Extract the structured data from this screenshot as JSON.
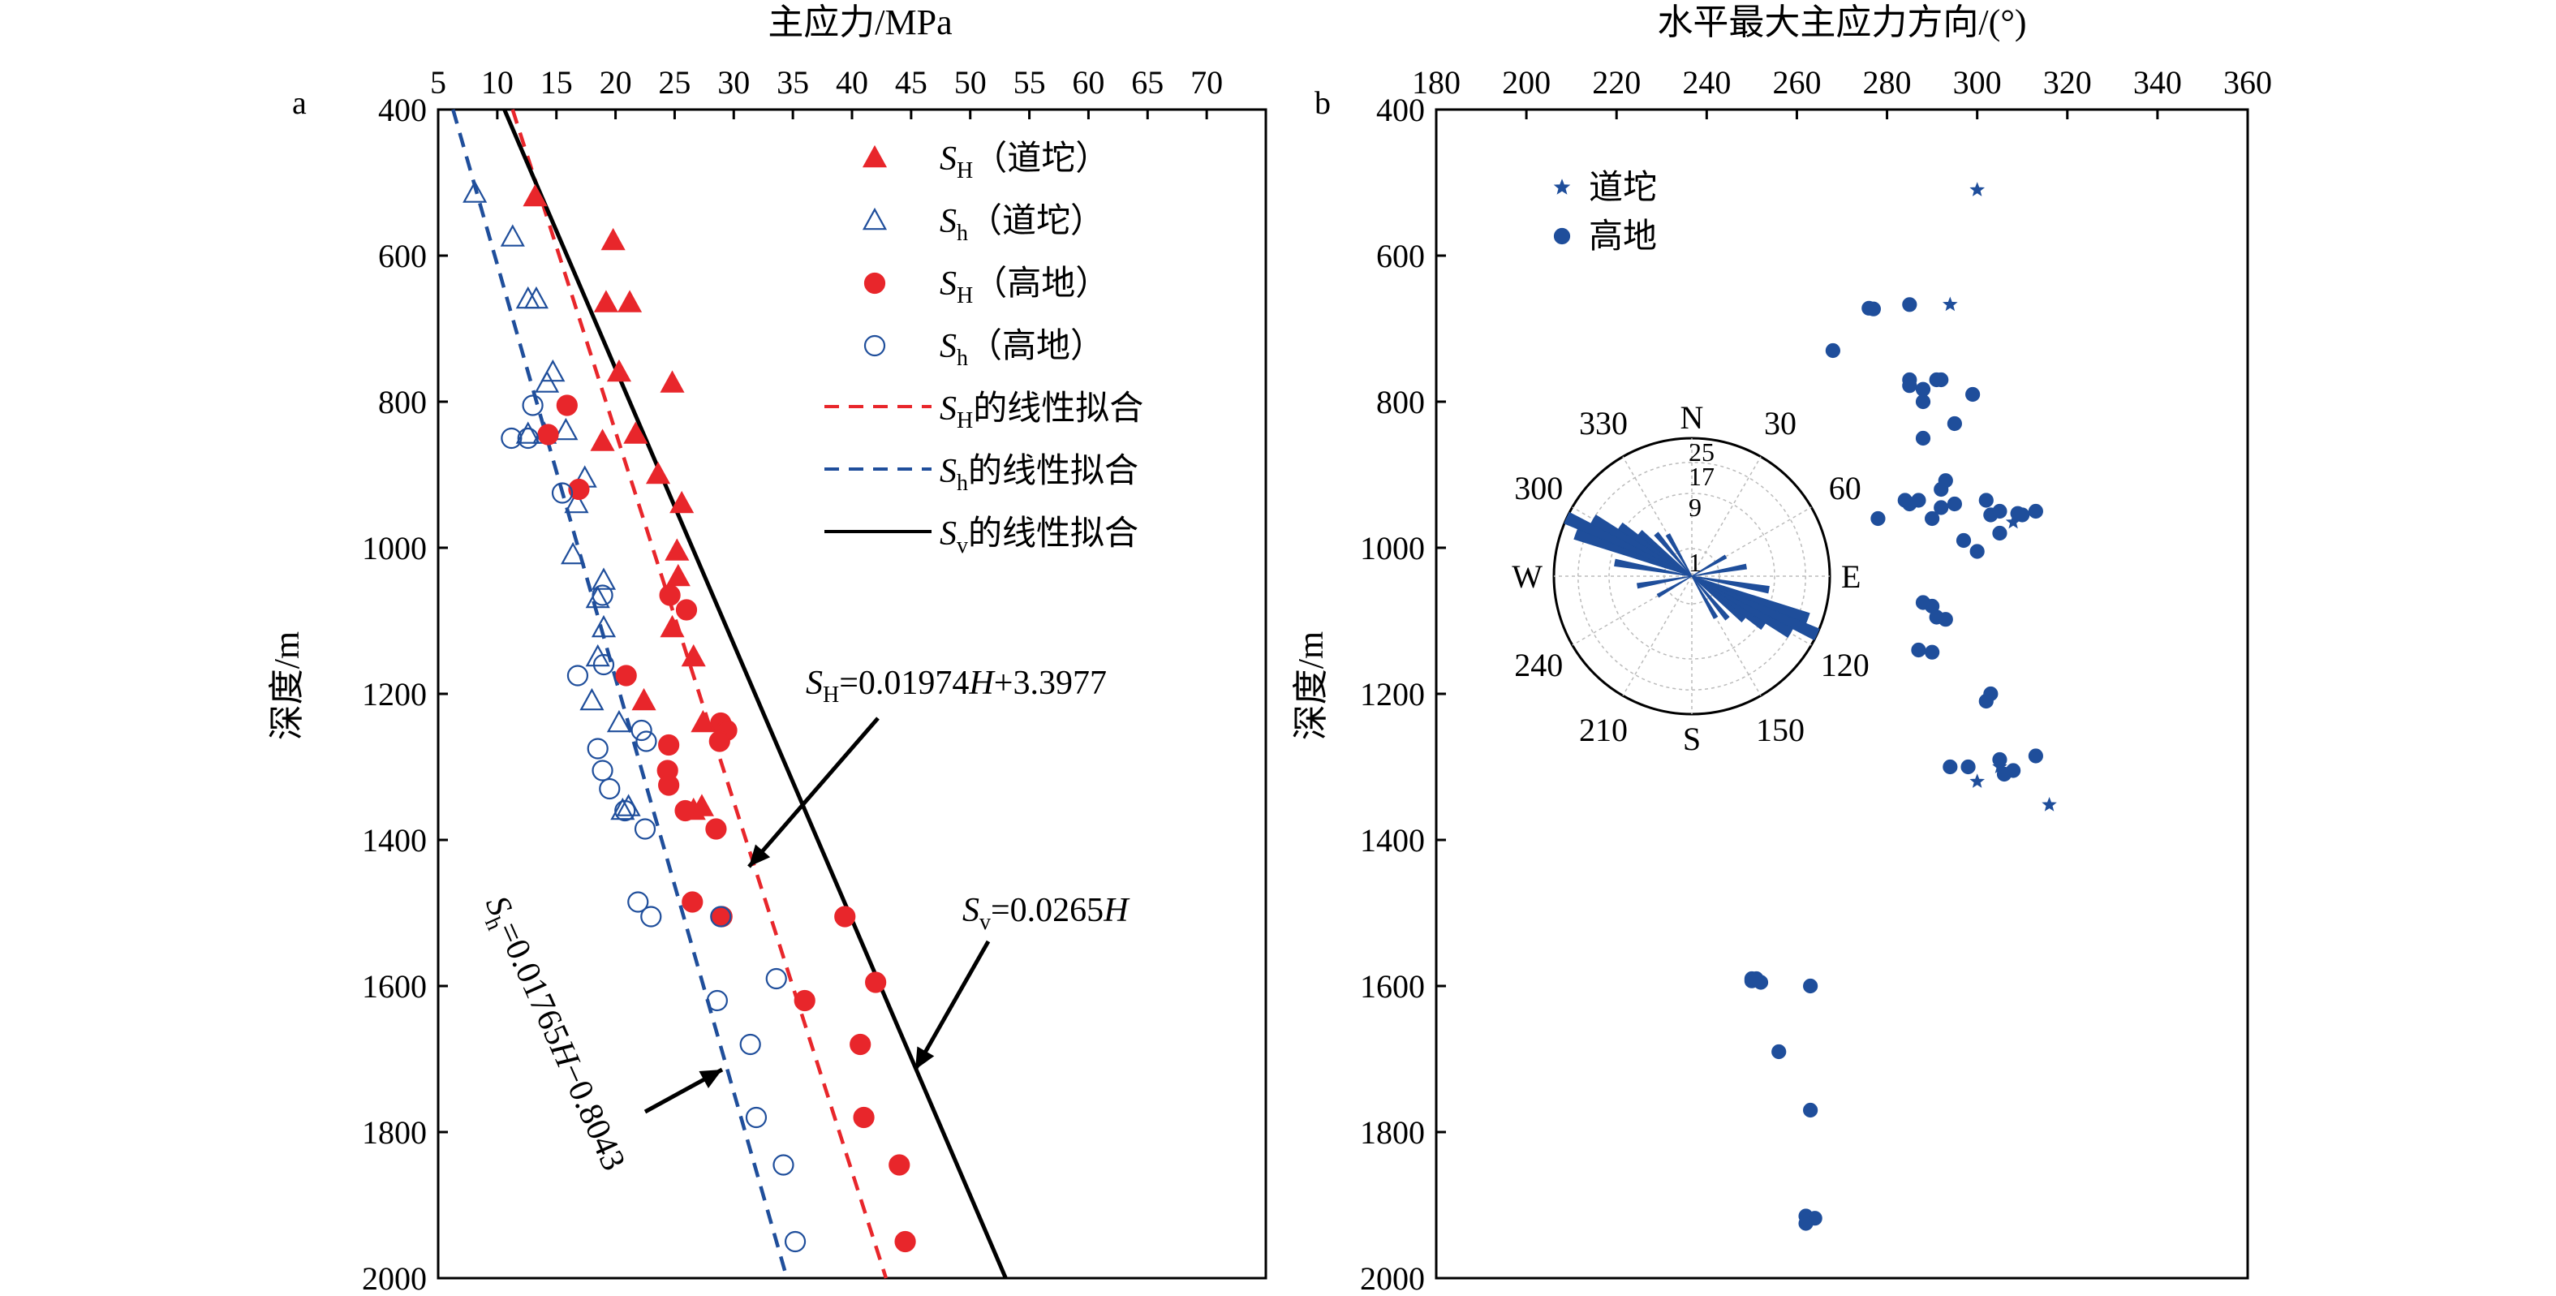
{
  "chart_data": [
    {
      "panel": "a",
      "type": "scatter",
      "xlabel": "主应力/MPa",
      "ylabel": "深度/m",
      "xlim": [
        5,
        75
      ],
      "ylim": [
        400,
        2000
      ],
      "xticks": [
        "5",
        "10",
        "15",
        "20",
        "25",
        "30",
        "35",
        "40",
        "45",
        "50",
        "55",
        "60",
        "65",
        "70"
      ],
      "yticks": [
        "400",
        "600",
        "800",
        "1000",
        "1200",
        "1400",
        "1600",
        "1800",
        "2000"
      ],
      "x_axis_position": "top",
      "y_inverted": true,
      "grid": false,
      "legend_position": "top-right",
      "series": [
        {
          "name": "SH（道坨）",
          "marker": "filled-triangle",
          "color": "#e8262b",
          "points": [
            [
              13.2,
              520
            ],
            [
              19.8,
              580
            ],
            [
              19.2,
              665
            ],
            [
              21.2,
              665
            ],
            [
              20.3,
              760
            ],
            [
              24.8,
              775
            ],
            [
              21.7,
              845
            ],
            [
              18.9,
              855
            ],
            [
              23.6,
              900
            ],
            [
              25.6,
              940
            ],
            [
              25.2,
              1005
            ],
            [
              25.3,
              1040
            ],
            [
              24.8,
              1110
            ],
            [
              26.6,
              1150
            ],
            [
              22.4,
              1210
            ],
            [
              27.4,
              1240
            ],
            [
              27.3,
              1355
            ],
            [
              26.6,
              1360
            ]
          ]
        },
        {
          "name": "Sh（道坨）",
          "marker": "open-triangle",
          "color": "#1f4e9b",
          "points": [
            [
              8.1,
              515
            ],
            [
              11.3,
              575
            ],
            [
              12.6,
              660
            ],
            [
              13.3,
              660
            ],
            [
              14.7,
              760
            ],
            [
              14.2,
              775
            ],
            [
              14.0,
              845
            ],
            [
              12.6,
              845
            ],
            [
              15.8,
              840
            ],
            [
              17.4,
              905
            ],
            [
              16.7,
              940
            ],
            [
              16.4,
              1010
            ],
            [
              19.0,
              1045
            ],
            [
              18.5,
              1070
            ],
            [
              19.0,
              1110
            ],
            [
              18.5,
              1150
            ],
            [
              18.0,
              1210
            ],
            [
              20.3,
              1240
            ],
            [
              21.1,
              1355
            ],
            [
              20.6,
              1360
            ]
          ]
        },
        {
          "name": "SH（高地）",
          "marker": "filled-circle",
          "color": "#e8262b",
          "points": [
            [
              15.9,
              805
            ],
            [
              14.3,
              845
            ],
            [
              16.9,
              920
            ],
            [
              24.6,
              1065
            ],
            [
              26.0,
              1085
            ],
            [
              20.9,
              1175
            ],
            [
              24.5,
              1270
            ],
            [
              24.4,
              1305
            ],
            [
              24.5,
              1325
            ],
            [
              28.9,
              1240
            ],
            [
              29.4,
              1250
            ],
            [
              28.8,
              1265
            ],
            [
              25.9,
              1360
            ],
            [
              28.5,
              1385
            ],
            [
              26.5,
              1485
            ],
            [
              29.0,
              1505
            ],
            [
              39.4,
              1505
            ],
            [
              36.0,
              1620
            ],
            [
              42.0,
              1595
            ],
            [
              40.7,
              1680
            ],
            [
              41.0,
              1780
            ],
            [
              44.0,
              1845
            ],
            [
              44.5,
              1950
            ]
          ]
        },
        {
          "name": "Sh（高地）",
          "marker": "open-circle",
          "color": "#1f4e9b",
          "points": [
            [
              13.0,
              805
            ],
            [
              11.2,
              850
            ],
            [
              12.6,
              850
            ],
            [
              15.5,
              925
            ],
            [
              18.9,
              1065
            ],
            [
              16.8,
              1175
            ],
            [
              19.0,
              1160
            ],
            [
              18.5,
              1275
            ],
            [
              18.9,
              1305
            ],
            [
              19.5,
              1330
            ],
            [
              22.2,
              1250
            ],
            [
              22.6,
              1265
            ],
            [
              20.8,
              1360
            ],
            [
              22.5,
              1385
            ],
            [
              21.9,
              1485
            ],
            [
              23.0,
              1505
            ],
            [
              28.9,
              1505
            ],
            [
              28.6,
              1620
            ],
            [
              33.6,
              1590
            ],
            [
              31.4,
              1680
            ],
            [
              31.9,
              1780
            ],
            [
              34.2,
              1845
            ],
            [
              35.2,
              1950
            ]
          ]
        }
      ],
      "fit_lines": [
        {
          "name": "SH的线性拟合",
          "style": "dashed",
          "color": "#e8262b",
          "slope": 0.01974,
          "intercept": 3.3977
        },
        {
          "name": "Sh的线性拟合",
          "style": "dashed",
          "color": "#1f4e9b",
          "slope": 0.01765,
          "intercept": -0.8043
        },
        {
          "name": "Sv的线性拟合",
          "style": "solid",
          "color": "#000000",
          "slope": 0.0265,
          "intercept": 0
        }
      ],
      "legend": [
        {
          "main": "S",
          "sub": "H",
          "rest": "（道坨）"
        },
        {
          "main": "S",
          "sub": "h",
          "rest": "（道坨）"
        },
        {
          "main": "S",
          "sub": "H",
          "rest": "（高地）"
        },
        {
          "main": "S",
          "sub": "h",
          "rest": "（高地）"
        },
        {
          "main": "S",
          "sub": "H",
          "rest": "的线性拟合"
        },
        {
          "main": "S",
          "sub": "h",
          "rest": "的线性拟合"
        },
        {
          "main": "S",
          "sub": "v",
          "rest": "的线性拟合"
        }
      ],
      "annotations": {
        "sh_eq": {
          "main": "S",
          "sub": "H",
          "eq": "=0.01974",
          "var": "H",
          "rest": "+3.3977"
        },
        "sv_eq": {
          "main": "S",
          "sub": "v",
          "eq": "=0.0265",
          "var": "H",
          "rest": ""
        },
        "sh_small_eq": {
          "main": "S",
          "sub": "h",
          "eq": "=0.01765",
          "var": "H",
          "rest": "−0.8043"
        }
      }
    },
    {
      "panel": "b",
      "type": "scatter",
      "xlabel": "水平最大主应力方向/(°)",
      "ylabel": "深度/m",
      "xlim": [
        180,
        360
      ],
      "ylim": [
        400,
        2000
      ],
      "xticks": [
        "180",
        "200",
        "220",
        "240",
        "260",
        "280",
        "300",
        "320",
        "340",
        "360"
      ],
      "yticks": [
        "400",
        "600",
        "800",
        "1000",
        "1200",
        "1400",
        "1600",
        "1800",
        "2000"
      ],
      "x_axis_position": "top",
      "y_inverted": true,
      "grid": false,
      "legend_position": "top-left",
      "series": [
        {
          "name": "道坨",
          "marker": "star",
          "color": "#1f4e9b",
          "points": [
            [
              300,
              510
            ],
            [
              294,
              667
            ],
            [
              308,
              965
            ],
            [
              300,
              1320
            ],
            [
              305,
              1300
            ],
            [
              316,
              1352
            ]
          ]
        },
        {
          "name": "高地",
          "marker": "filled-circle",
          "color": "#1f4e9b",
          "points": [
            [
              276,
              672
            ],
            [
              277,
              673
            ],
            [
              285,
              667
            ],
            [
              268,
              730
            ],
            [
              285,
              770
            ],
            [
              285,
              778
            ],
            [
              291,
              770
            ],
            [
              292,
              770
            ],
            [
              288,
              783
            ],
            [
              288,
              800
            ],
            [
              299,
              790
            ],
            [
              295,
              830
            ],
            [
              288,
              850
            ],
            [
              278,
              960
            ],
            [
              285,
              940
            ],
            [
              287,
              935
            ],
            [
              284,
              935
            ],
            [
              292,
              920
            ],
            [
              293,
              908
            ],
            [
              290,
              960
            ],
            [
              292,
              945
            ],
            [
              295,
              940
            ],
            [
              302,
              935
            ],
            [
              303,
              955
            ],
            [
              305,
              950
            ],
            [
              309,
              953
            ],
            [
              313,
              950
            ],
            [
              310,
              955
            ],
            [
              297,
              990
            ],
            [
              300,
              1005
            ],
            [
              305,
              980
            ],
            [
              288,
              1075
            ],
            [
              290,
              1080
            ],
            [
              291,
              1095
            ],
            [
              293,
              1098
            ],
            [
              287,
              1140
            ],
            [
              290,
              1143
            ],
            [
              303,
              1200
            ],
            [
              302,
              1210
            ],
            [
              294,
              1300
            ],
            [
              298,
              1300
            ],
            [
              305,
              1290
            ],
            [
              308,
              1305
            ],
            [
              313,
              1285
            ],
            [
              306,
              1310
            ],
            [
              250,
              1590
            ],
            [
              250,
              1593
            ],
            [
              251,
              1590
            ],
            [
              252,
              1595
            ],
            [
              263,
              1600
            ],
            [
              256,
              1690
            ],
            [
              263,
              1770
            ],
            [
              262,
              1915
            ],
            [
              264,
              1918
            ],
            [
              262,
              1925
            ]
          ]
        }
      ],
      "legend": [
        "道坨",
        "高地"
      ],
      "rose_inset": {
        "type": "rose",
        "cardinal": [
          "N",
          "E",
          "S",
          "W"
        ],
        "angle_labels": [
          "30",
          "60",
          "120",
          "150",
          "210",
          "240",
          "300",
          "330"
        ],
        "ring_labels": [
          "1",
          "9",
          "17",
          "25"
        ],
        "ring_values": [
          1,
          9,
          17,
          25
        ],
        "bins": [
          {
            "angle": 100,
            "value": 8
          },
          {
            "angle": 110,
            "value": 20
          },
          {
            "angle": 115,
            "value": 25
          },
          {
            "angle": 120,
            "value": 17
          },
          {
            "angle": 125,
            "value": 10
          },
          {
            "angle": 130,
            "value": 6
          },
          {
            "angle": 140,
            "value": 4
          },
          {
            "angle": 150,
            "value": 3
          },
          {
            "angle": 280,
            "value": 8
          },
          {
            "angle": 290,
            "value": 20
          },
          {
            "angle": 295,
            "value": 25
          },
          {
            "angle": 300,
            "value": 17
          },
          {
            "angle": 305,
            "value": 10
          },
          {
            "angle": 310,
            "value": 6
          },
          {
            "angle": 320,
            "value": 4
          },
          {
            "angle": 330,
            "value": 3
          },
          {
            "angle": 80,
            "value": 4
          },
          {
            "angle": 260,
            "value": 4
          },
          {
            "angle": 60,
            "value": 2
          },
          {
            "angle": 240,
            "value": 2
          }
        ],
        "color": "#1f4e9b"
      }
    }
  ],
  "labels": {
    "panel_a": "a",
    "panel_b": "b"
  }
}
